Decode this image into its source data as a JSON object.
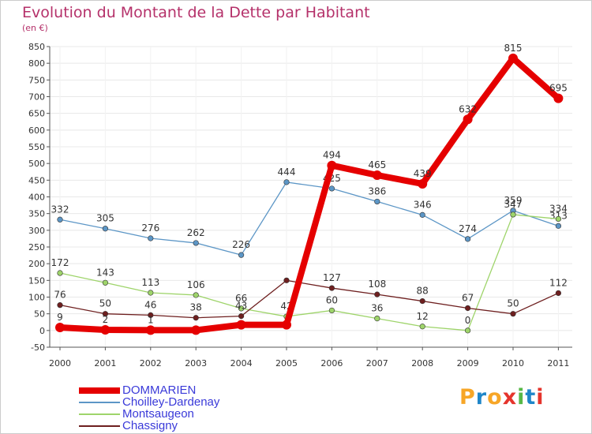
{
  "title": "Evolution du Montant de la Dette par Habitant",
  "subtitle": "(en €)",
  "logo": {
    "letters": [
      "P",
      "r",
      "o",
      "x",
      "i",
      "t",
      "i"
    ],
    "colors": [
      "#f7a627",
      "#1f86c9",
      "#f7a627",
      "#e5342c",
      "#57b847",
      "#1f86c9",
      "#e5342c"
    ]
  },
  "colors": {
    "title": "#b5316a",
    "axis": "#555555",
    "grid": "#e8e8e8",
    "legend_text": "#3a3ad9"
  },
  "chart_data": {
    "type": "line",
    "title": "Evolution du Montant de la Dette par Habitant",
    "ylabel": "(en €)",
    "xlabel": "",
    "ylim": [
      -50,
      850
    ],
    "yticks": [
      -50,
      0,
      50,
      100,
      150,
      200,
      250,
      300,
      350,
      400,
      450,
      500,
      550,
      600,
      650,
      700,
      750,
      800,
      850
    ],
    "categories": [
      "2000",
      "2001",
      "2002",
      "2003",
      "2004",
      "2005",
      "2006",
      "2007",
      "2008",
      "2009",
      "2010",
      "2011"
    ],
    "legend_position": "bottom-left",
    "series": [
      {
        "name": "DOMMARIEN",
        "color": "#e50000",
        "width": 8,
        "values": [
          9,
          2,
          1,
          1,
          17,
          17,
          494,
          465,
          439,
          632,
          815,
          695
        ],
        "labels": [
          "9",
          "2",
          "1",
          "",
          "",
          "",
          "494",
          "465",
          "439",
          "632",
          "815",
          "695"
        ]
      },
      {
        "name": "Choilley-Dardenay",
        "color": "#5c96c6",
        "width": 1.3,
        "values": [
          332,
          305,
          276,
          262,
          226,
          444,
          425,
          386,
          346,
          274,
          359,
          313
        ],
        "labels": [
          "332",
          "305",
          "276",
          "262",
          "226",
          "444",
          "425",
          "386",
          "346",
          "274",
          "359",
          "313"
        ]
      },
      {
        "name": "Montsaugeon",
        "color": "#9ed46a",
        "width": 1.3,
        "values": [
          172,
          143,
          113,
          106,
          66,
          42,
          60,
          36,
          12,
          0,
          347,
          334
        ],
        "labels": [
          "172",
          "143",
          "113",
          "106",
          "66",
          "42",
          "60",
          "36",
          "12",
          "0",
          "347",
          "334"
        ]
      },
      {
        "name": "Chassigny",
        "color": "#6e1f1f",
        "width": 1.3,
        "values": [
          76,
          50,
          46,
          38,
          43,
          150,
          127,
          108,
          88,
          67,
          50,
          112
        ],
        "labels": [
          "76",
          "50",
          "46",
          "38",
          "43",
          "",
          "127",
          "108",
          "88",
          "67",
          "50",
          "112"
        ]
      }
    ]
  }
}
